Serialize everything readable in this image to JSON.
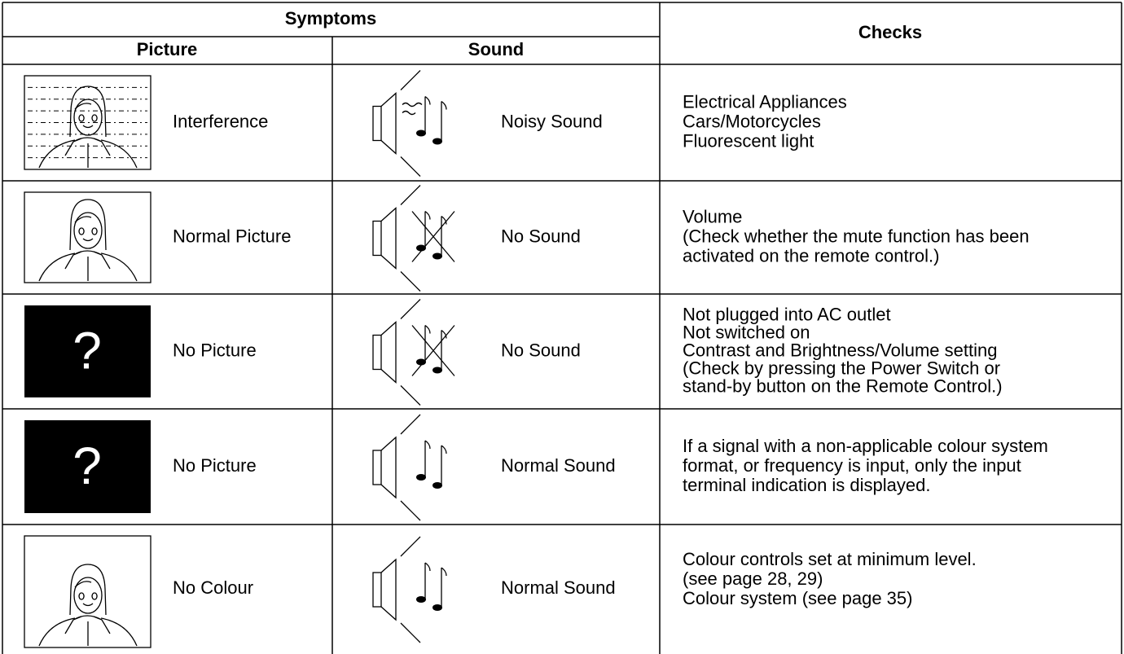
{
  "table": {
    "header": {
      "symptoms": "Symptoms",
      "picture": "Picture",
      "sound": "Sound",
      "checks": "Checks"
    },
    "rows": [
      {
        "picture": "Interference",
        "sound": "Noisy Sound",
        "checks": [
          "Electrical Appliances",
          "Cars/Motorcycles",
          "Fluorescent light"
        ]
      },
      {
        "picture": "Normal Picture",
        "sound": "No Sound",
        "checks": [
          "Volume",
          "(Check whether the mute function has been",
          "activated on the remote control.)"
        ]
      },
      {
        "picture": "No Picture",
        "picture_icon": "?",
        "sound": "No Sound",
        "checks": [
          "Not plugged into AC outlet",
          "Not switched on",
          "Contrast and Brightness/Volume setting",
          "(Check by pressing the Power Switch or",
          "stand-by button on the Remote Control.)"
        ]
      },
      {
        "picture": "No Picture",
        "picture_icon": "?",
        "sound": "Normal Sound",
        "checks": [
          "If a signal with a non-applicable colour system",
          "format, or frequency is input, only the input",
          "terminal indication is displayed."
        ]
      },
      {
        "picture": "No Colour",
        "sound": "Normal Sound",
        "checks": [
          "Colour controls set at minimum level.",
          "(see page 28, 29)",
          "Colour system (see page 35)"
        ]
      }
    ]
  }
}
